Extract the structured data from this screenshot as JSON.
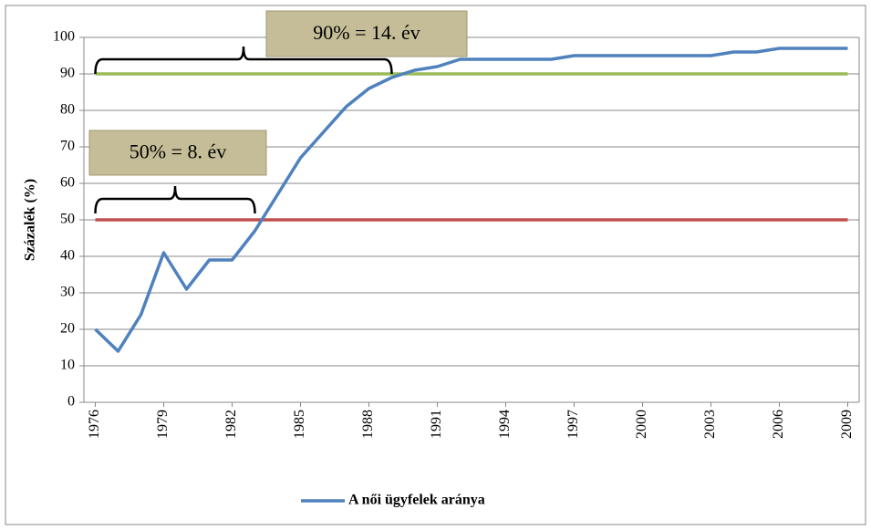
{
  "chart_data": {
    "type": "line",
    "y_label": "Százalék (%)",
    "x": [
      1976,
      1977,
      1978,
      1979,
      1980,
      1981,
      1982,
      1983,
      1984,
      1985,
      1986,
      1987,
      1988,
      1989,
      1990,
      1991,
      1992,
      1993,
      1994,
      1995,
      1996,
      1997,
      1998,
      1999,
      2000,
      2001,
      2002,
      2003,
      2004,
      2005,
      2006,
      2007,
      2008,
      2009
    ],
    "series": [
      {
        "name": "A női ügyfelek aránya",
        "color": "#4f81bd",
        "values": [
          20,
          14,
          24,
          41,
          31,
          39,
          39,
          47,
          57,
          67,
          74,
          81,
          86,
          89,
          91,
          92,
          94,
          94,
          94,
          94,
          94,
          95,
          95,
          95,
          95,
          95,
          95,
          95,
          96,
          96,
          97,
          97,
          97,
          97
        ]
      }
    ],
    "reference_lines": [
      {
        "value": 90,
        "color": "#9bbb59"
      },
      {
        "value": 50,
        "color": "#c0504d"
      }
    ],
    "annotations": [
      {
        "text": "90% = 14. év",
        "from": 1976,
        "to": 1989
      },
      {
        "text": "50% = 8. év",
        "from": 1976,
        "to": 1983
      }
    ],
    "xlim": [
      1975.5,
      2009.5
    ],
    "xticks": [
      1976,
      1979,
      1982,
      1985,
      1988,
      1991,
      1994,
      1997,
      2000,
      2003,
      2006,
      2009
    ],
    "ylim": [
      0,
      100
    ],
    "yticks": [
      0,
      10,
      20,
      30,
      40,
      50,
      60,
      70,
      80,
      90,
      100
    ],
    "grid": true,
    "legend": "bottom"
  }
}
